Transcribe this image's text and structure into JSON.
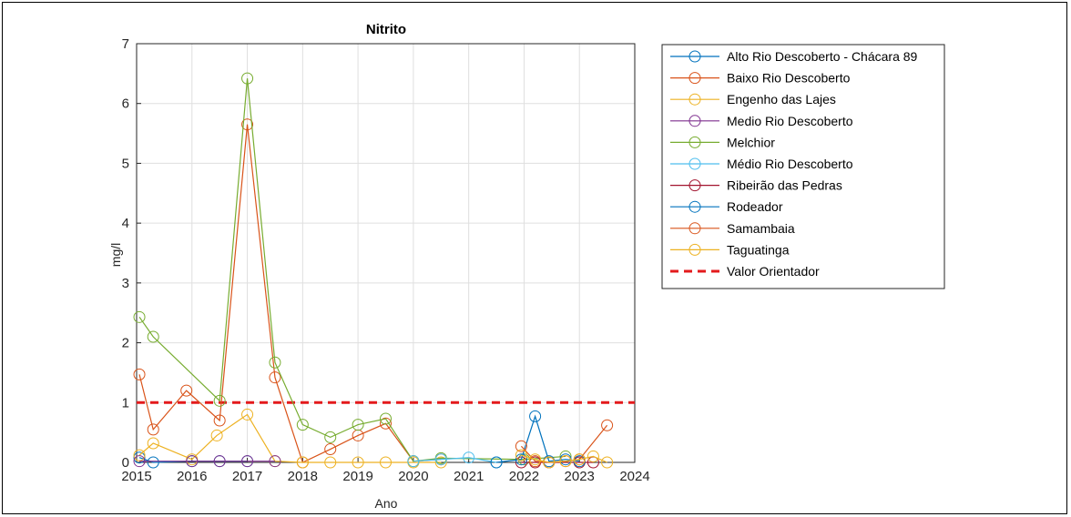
{
  "chart_data": {
    "type": "line",
    "title": "Nitrito",
    "xlabel": "Ano",
    "ylabel": "mg/l",
    "xlim": [
      2015,
      2024
    ],
    "ylim": [
      0,
      7
    ],
    "x_ticks": [
      "2015",
      "2016",
      "2017",
      "2018",
      "2019",
      "2020",
      "2021",
      "2022",
      "2023",
      "2024"
    ],
    "y_ticks": [
      "0",
      "1",
      "2",
      "3",
      "4",
      "5",
      "6",
      "7"
    ],
    "grid": true,
    "legend_position": "outside-right",
    "reference_line": {
      "name": "Valor Orientador",
      "value": 1,
      "color": "#e31a1c",
      "style": "dashed"
    },
    "series": [
      {
        "name": "Alto Rio Descoberto - Chácara 89",
        "color": "#0072bd",
        "points": [
          [
            2015.05,
            0.08
          ],
          [
            2015.3,
            0.0
          ],
          [
            2016.0,
            0.02
          ],
          [
            2016.5,
            0.02
          ],
          [
            2017.0,
            0.02
          ]
        ]
      },
      {
        "name": "Baixo Rio Descoberto",
        "color": "#d95319",
        "points": [
          [
            2015.05,
            1.47
          ],
          [
            2015.3,
            0.55
          ],
          [
            2015.9,
            1.2
          ],
          [
            2016.5,
            0.7
          ],
          [
            2017.0,
            5.65
          ],
          [
            2017.5,
            1.42
          ],
          [
            2018.0,
            0.0
          ],
          [
            2018.5,
            0.22
          ],
          [
            2019.0,
            0.45
          ],
          [
            2019.5,
            0.65
          ],
          [
            2020.0,
            0.02
          ],
          [
            2020.5,
            0.05
          ]
        ]
      },
      {
        "name": "Engenho das Lajes",
        "color": "#edb120",
        "points": [
          [
            2015.05,
            0.12
          ],
          [
            2015.3,
            0.32
          ],
          [
            2016.0,
            0.05
          ],
          [
            2016.45,
            0.45
          ],
          [
            2017.0,
            0.8
          ],
          [
            2017.5,
            0.02
          ],
          [
            2018.0,
            0.0
          ],
          [
            2018.5,
            0.0
          ],
          [
            2019.0,
            0.0
          ],
          [
            2019.5,
            0.0
          ],
          [
            2020.0,
            0.0
          ],
          [
            2020.5,
            0.0
          ]
        ]
      },
      {
        "name": "Medio Rio Descoberto",
        "color": "#7e2f8e",
        "points": [
          [
            2015.05,
            0.02
          ],
          [
            2016.0,
            0.02
          ],
          [
            2016.5,
            0.02
          ],
          [
            2017.0,
            0.02
          ],
          [
            2017.5,
            0.02
          ]
        ]
      },
      {
        "name": "Melchior",
        "color": "#77ac30",
        "points": [
          [
            2015.05,
            2.43
          ],
          [
            2015.3,
            2.1
          ],
          [
            2016.5,
            1.03
          ],
          [
            2017.0,
            6.42
          ],
          [
            2017.5,
            1.67
          ],
          [
            2018.0,
            0.63
          ],
          [
            2018.5,
            0.42
          ],
          [
            2019.0,
            0.63
          ],
          [
            2019.5,
            0.73
          ],
          [
            2020.0,
            0.02
          ],
          [
            2020.5,
            0.07
          ],
          [
            2022.0,
            0.05
          ],
          [
            2022.75,
            0.1
          ]
        ]
      },
      {
        "name": "Médio Rio Descoberto",
        "color": "#4dbeee",
        "points": [
          [
            2020.0,
            0.02
          ],
          [
            2020.5,
            0.05
          ],
          [
            2021.0,
            0.08
          ],
          [
            2021.5,
            0.0
          ]
        ]
      },
      {
        "name": "Ribeirão das Pedras",
        "color": "#a2142f",
        "points": [
          [
            2021.95,
            0.0
          ],
          [
            2022.2,
            0.0
          ],
          [
            2022.45,
            0.0
          ],
          [
            2023.0,
            0.0
          ],
          [
            2023.25,
            0.0
          ]
        ]
      },
      {
        "name": "Rodeador",
        "color": "#0072bd",
        "points": [
          [
            2021.5,
            0.0
          ],
          [
            2021.95,
            0.05
          ],
          [
            2022.2,
            0.77
          ],
          [
            2022.45,
            0.02
          ],
          [
            2022.75,
            0.05
          ],
          [
            2023.0,
            0.02
          ]
        ]
      },
      {
        "name": "Samambaia",
        "color": "#d95319",
        "points": [
          [
            2021.95,
            0.27
          ],
          [
            2022.2,
            0.02
          ],
          [
            2022.45,
            0.0
          ],
          [
            2022.75,
            0.02
          ],
          [
            2023.0,
            0.05
          ],
          [
            2023.5,
            0.62
          ]
        ]
      },
      {
        "name": "Taguatinga",
        "color": "#edb120",
        "points": [
          [
            2021.95,
            0.12
          ],
          [
            2022.2,
            0.05
          ],
          [
            2022.45,
            0.0
          ],
          [
            2022.75,
            0.02
          ],
          [
            2023.0,
            0.05
          ],
          [
            2023.25,
            0.1
          ],
          [
            2023.5,
            0.0
          ]
        ]
      }
    ]
  }
}
